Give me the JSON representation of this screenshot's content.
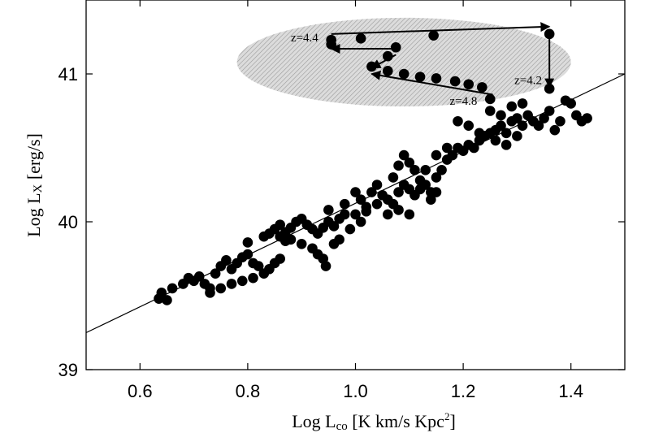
{
  "chart_data": {
    "type": "scatter",
    "xlabel": "Log Lco [K km/s Kpc²]",
    "xlabel_parts": {
      "main": "Log L",
      "sub": "co",
      "unit": " [K km/s Kpc",
      "sup": "2",
      "close": "]"
    },
    "ylabel": "Log Lx [erg/s]",
    "ylabel_parts": {
      "main": "Log L",
      "sub": "X",
      "unit": " [erg/s]"
    },
    "xlim": [
      0.5,
      1.5
    ],
    "ylim": [
      39,
      41.5
    ],
    "xticks": [
      0.6,
      0.8,
      1.0,
      1.2,
      1.4
    ],
    "xtick_labels": [
      "0.6",
      "0.8",
      "1.0",
      "1.2",
      "1.4"
    ],
    "yticks": [
      39,
      40,
      41
    ],
    "ytick_labels": [
      "39",
      "40",
      "41"
    ],
    "grid": false,
    "fit_line": {
      "x": [
        0.5,
        1.5
      ],
      "y": [
        39.25,
        41.0
      ]
    },
    "highlight_region": {
      "shape": "ellipse",
      "style": "hatched-gray",
      "center": [
        1.09,
        41.08
      ],
      "radii": [
        0.31,
        0.3
      ]
    },
    "series": [
      {
        "values": [
          [
            0.635,
            39.48
          ],
          [
            0.64,
            39.52
          ],
          [
            0.65,
            39.47
          ],
          [
            0.66,
            39.55
          ],
          [
            0.68,
            39.58
          ],
          [
            0.69,
            39.62
          ],
          [
            0.7,
            39.6
          ],
          [
            0.71,
            39.63
          ],
          [
            0.72,
            39.58
          ],
          [
            0.73,
            39.55
          ],
          [
            0.74,
            39.65
          ],
          [
            0.75,
            39.7
          ],
          [
            0.76,
            39.74
          ],
          [
            0.77,
            39.68
          ],
          [
            0.78,
            39.72
          ],
          [
            0.79,
            39.76
          ],
          [
            0.8,
            39.78
          ],
          [
            0.8,
            39.86
          ],
          [
            0.81,
            39.72
          ],
          [
            0.82,
            39.7
          ],
          [
            0.73,
            39.52
          ],
          [
            0.75,
            39.55
          ],
          [
            0.77,
            39.58
          ],
          [
            0.79,
            39.6
          ],
          [
            0.81,
            39.62
          ],
          [
            0.83,
            39.65
          ],
          [
            0.84,
            39.68
          ],
          [
            0.85,
            39.72
          ],
          [
            0.86,
            39.75
          ],
          [
            0.83,
            39.9
          ],
          [
            0.84,
            39.92
          ],
          [
            0.85,
            39.95
          ],
          [
            0.86,
            39.98
          ],
          [
            0.87,
            39.93
          ],
          [
            0.88,
            39.96
          ],
          [
            0.89,
            40.0
          ],
          [
            0.9,
            40.02
          ],
          [
            0.91,
            39.98
          ],
          [
            0.92,
            39.95
          ],
          [
            0.93,
            39.92
          ],
          [
            0.94,
            39.96
          ],
          [
            0.95,
            40.0
          ],
          [
            0.96,
            39.97
          ],
          [
            0.97,
            40.02
          ],
          [
            0.98,
            40.05
          ],
          [
            0.88,
            39.88
          ],
          [
            0.9,
            39.85
          ],
          [
            0.92,
            39.82
          ],
          [
            0.93,
            39.78
          ],
          [
            0.94,
            39.75
          ],
          [
            0.945,
            39.7
          ],
          [
            0.86,
            39.9
          ],
          [
            0.87,
            39.87
          ],
          [
            0.98,
            40.12
          ],
          [
            1.0,
            40.2
          ],
          [
            1.01,
            40.15
          ],
          [
            1.02,
            40.07
          ],
          [
            1.03,
            40.2
          ],
          [
            1.04,
            40.25
          ],
          [
            1.05,
            40.18
          ],
          [
            1.06,
            40.15
          ],
          [
            1.07,
            40.12
          ],
          [
            1.08,
            40.2
          ],
          [
            1.09,
            40.25
          ],
          [
            1.1,
            40.22
          ],
          [
            1.11,
            40.18
          ],
          [
            1.12,
            40.22
          ],
          [
            1.13,
            40.25
          ],
          [
            1.14,
            40.2
          ],
          [
            1.15,
            40.3
          ],
          [
            1.16,
            40.35
          ],
          [
            1.17,
            40.42
          ],
          [
            1.18,
            40.45
          ],
          [
            1.19,
            40.5
          ],
          [
            1.2,
            40.48
          ],
          [
            1.21,
            40.52
          ],
          [
            1.22,
            40.5
          ],
          [
            1.23,
            40.55
          ],
          [
            1.24,
            40.58
          ],
          [
            1.25,
            40.6
          ],
          [
            1.26,
            40.62
          ],
          [
            1.27,
            40.65
          ],
          [
            1.28,
            40.6
          ],
          [
            1.29,
            40.68
          ],
          [
            1.3,
            40.7
          ],
          [
            1.31,
            40.65
          ],
          [
            1.32,
            40.72
          ],
          [
            1.33,
            40.68
          ],
          [
            1.34,
            40.65
          ],
          [
            1.35,
            40.7
          ],
          [
            1.36,
            40.75
          ],
          [
            1.37,
            40.62
          ],
          [
            1.38,
            40.68
          ],
          [
            1.39,
            40.82
          ],
          [
            1.4,
            40.8
          ],
          [
            1.41,
            40.72
          ],
          [
            1.42,
            40.68
          ],
          [
            1.43,
            40.7
          ],
          [
            1.25,
            40.75
          ],
          [
            1.27,
            40.72
          ],
          [
            1.29,
            40.78
          ],
          [
            1.31,
            40.8
          ],
          [
            1.26,
            40.55
          ],
          [
            1.28,
            40.52
          ],
          [
            1.3,
            40.58
          ],
          [
            1.23,
            40.6
          ],
          [
            1.21,
            40.65
          ],
          [
            1.19,
            40.68
          ],
          [
            1.07,
            40.3
          ],
          [
            1.08,
            40.38
          ],
          [
            1.09,
            40.45
          ],
          [
            1.1,
            40.4
          ],
          [
            1.11,
            40.35
          ],
          [
            1.06,
            40.05
          ],
          [
            1.08,
            40.08
          ],
          [
            1.1,
            40.05
          ],
          [
            1.12,
            40.28
          ],
          [
            1.14,
            40.15
          ],
          [
            1.15,
            40.2
          ],
          [
            1.13,
            40.35
          ],
          [
            1.15,
            40.45
          ],
          [
            1.17,
            40.5
          ],
          [
            1.02,
            40.1
          ],
          [
            1.01,
            40.0
          ],
          [
            0.99,
            39.95
          ],
          [
            0.96,
            39.85
          ],
          [
            0.97,
            39.88
          ],
          [
            0.95,
            40.08
          ],
          [
            1.04,
            40.12
          ],
          [
            1.0,
            40.05
          ]
        ]
      },
      {
        "name": "highlighted",
        "values": [
          [
            0.955,
            41.23
          ],
          [
            1.01,
            41.24
          ],
          [
            1.145,
            41.26
          ],
          [
            1.36,
            41.27
          ],
          [
            0.955,
            41.2
          ],
          [
            1.075,
            41.18
          ],
          [
            1.06,
            41.12
          ],
          [
            1.03,
            41.05
          ],
          [
            1.06,
            41.02
          ],
          [
            1.09,
            41.0
          ],
          [
            1.12,
            40.98
          ],
          [
            1.15,
            40.97
          ],
          [
            1.185,
            40.95
          ],
          [
            1.21,
            40.93
          ],
          [
            1.235,
            40.91
          ],
          [
            1.25,
            40.83
          ],
          [
            1.36,
            40.9
          ]
        ]
      }
    ],
    "annotations": [
      {
        "text": "z=4.4",
        "x": 0.88,
        "y": 41.22
      },
      {
        "text": "z=4.2",
        "x": 1.295,
        "y": 40.93
      },
      {
        "text": "z=4.8",
        "x": 1.175,
        "y": 40.79
      }
    ],
    "arrows": [
      {
        "from": [
          0.955,
          41.27
        ],
        "to": [
          1.36,
          41.32
        ]
      },
      {
        "from": [
          1.36,
          41.27
        ],
        "to": [
          1.36,
          40.91
        ]
      },
      {
        "from": [
          1.07,
          41.17
        ],
        "to": [
          0.955,
          41.17
        ]
      },
      {
        "from": [
          1.075,
          41.13
        ],
        "to": [
          1.03,
          41.04
        ]
      },
      {
        "from": [
          1.255,
          40.86
        ],
        "to": [
          1.03,
          41.0
        ]
      }
    ]
  }
}
